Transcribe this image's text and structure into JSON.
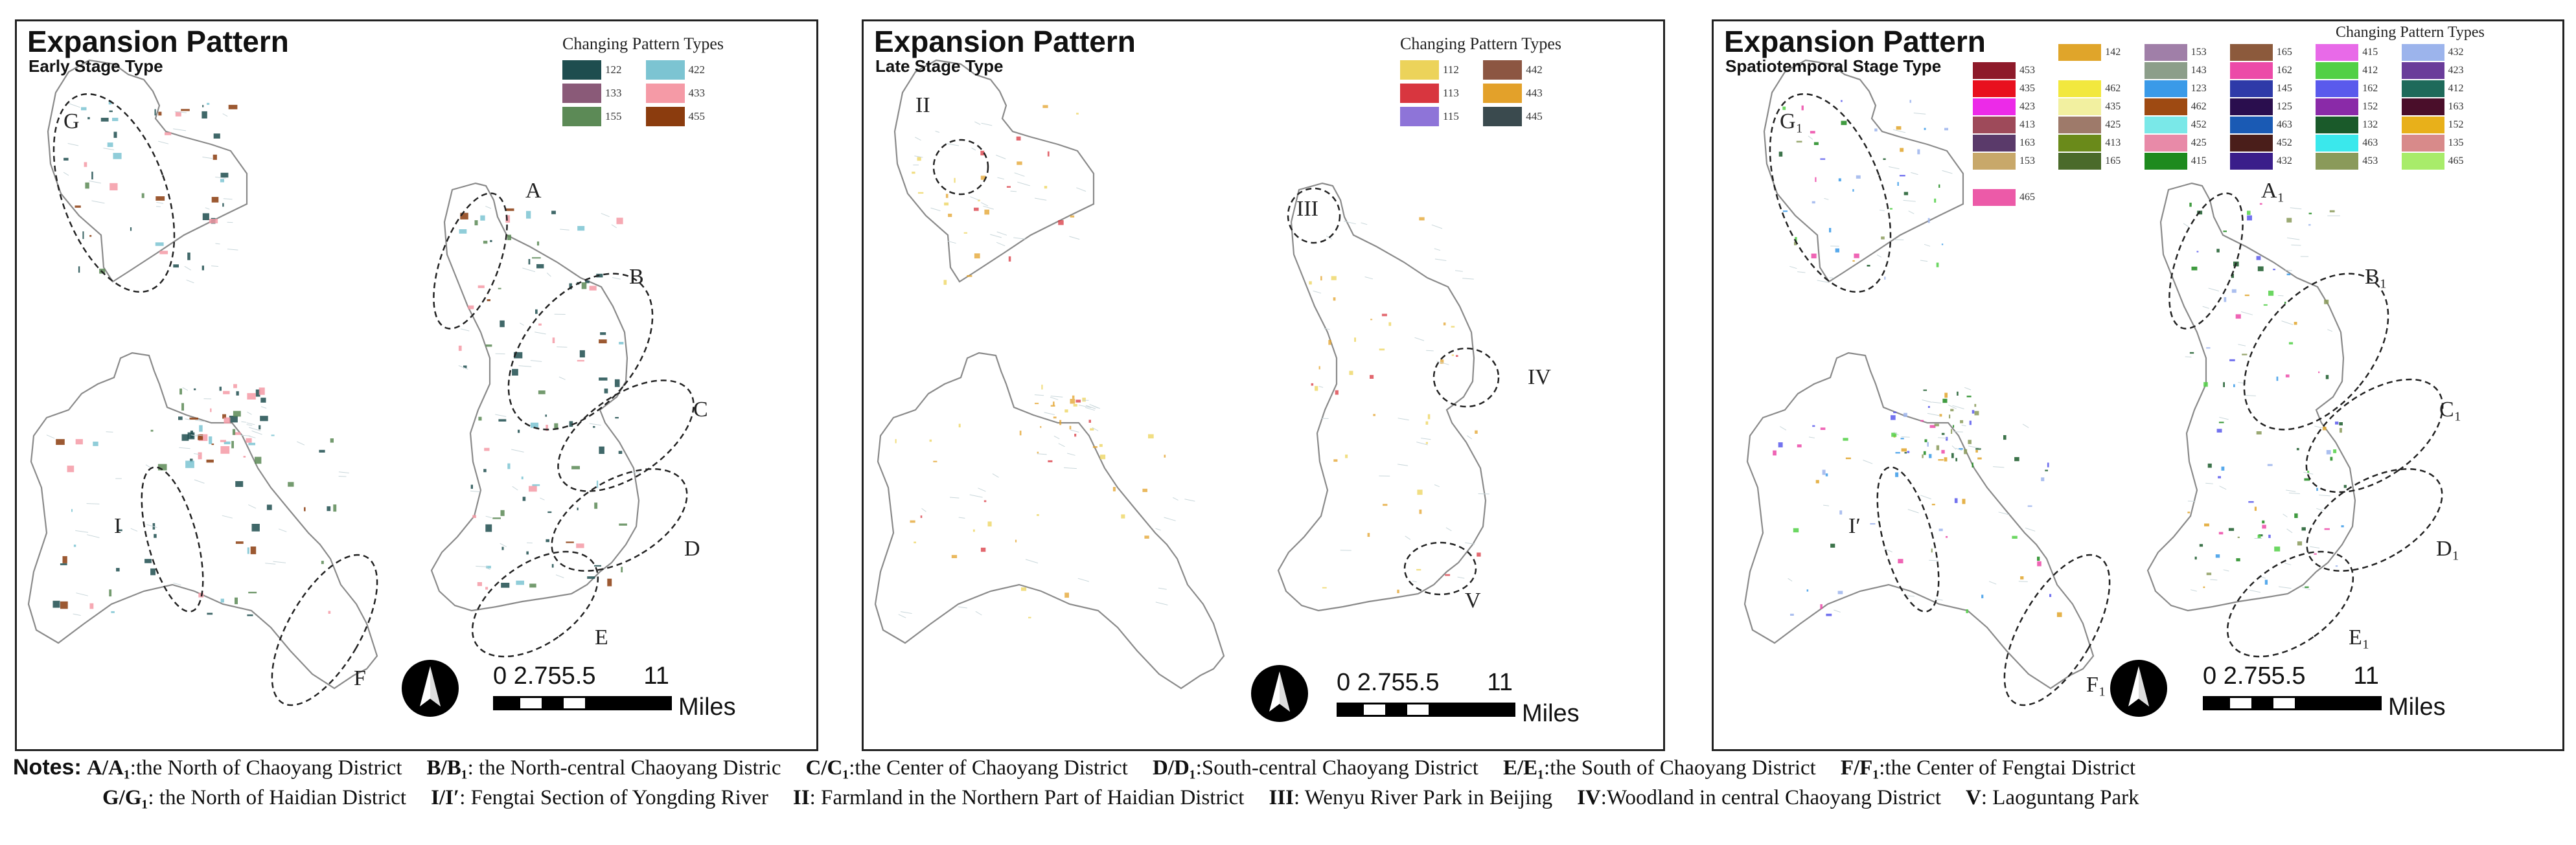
{
  "panels": [
    {
      "title": "Expansion Pattern",
      "subtitle": "Early Stage Type",
      "legend_title": "Changing Pattern Types",
      "legend_columns": 2,
      "legend": [
        {
          "code": "122",
          "color": "#1e4d4f"
        },
        {
          "code": "422",
          "color": "#7cc4d2"
        },
        {
          "code": "133",
          "color": "#8a5a78"
        },
        {
          "code": "433",
          "color": "#f59aa6"
        },
        {
          "code": "155",
          "color": "#5c8a56"
        },
        {
          "code": "455",
          "color": "#8b3c0e"
        }
      ],
      "patch_colors": [
        "#1e4d4f",
        "#1e4d4f",
        "#1e4d4f",
        "#7cc4d2",
        "#5c8a56",
        "#8b3c0e",
        "#f59aa6"
      ],
      "regions": [
        "G",
        "A",
        "B",
        "C",
        "D",
        "E",
        "I",
        "F"
      ],
      "scale": {
        "ticks": "0 2.755.5       11",
        "unit": "Miles"
      }
    },
    {
      "title": "Expansion Pattern",
      "subtitle": "Late Stage Type",
      "legend_title": "Changing Pattern Types",
      "legend_columns": 2,
      "legend": [
        {
          "code": "112",
          "color": "#ecd35a"
        },
        {
          "code": "442",
          "color": "#8c5642"
        },
        {
          "code": "113",
          "color": "#d8363f"
        },
        {
          "code": "443",
          "color": "#e3a12a"
        },
        {
          "code": "115",
          "color": "#8e74d8"
        },
        {
          "code": "445",
          "color": "#3a4a4e"
        }
      ],
      "patch_colors": [
        "#ecd35a",
        "#e3a12a",
        "#d8363f",
        "#e3a12a",
        "#ecd35a"
      ],
      "regions": [
        "II",
        "III",
        "IV",
        "V"
      ],
      "scale": {
        "ticks": "0 2.755.5       11",
        "unit": "Miles"
      }
    },
    {
      "title": "Expansion Pattern",
      "subtitle": "Spatiotemporal Stage Type",
      "legend_title": "Changing Pattern Types",
      "legend_columns": 6,
      "legend": [
        {
          "code": "",
          "color": ""
        },
        {
          "code": "142",
          "color": "#e0a52a"
        },
        {
          "code": "153",
          "color": "#a07fa8"
        },
        {
          "code": "165",
          "color": "#8c5a3c"
        },
        {
          "code": "415",
          "color": "#e86ae8"
        },
        {
          "code": "432",
          "color": "#9cb4ec"
        },
        {
          "code": "453",
          "color": "#8e1a2a"
        },
        {
          "code": "",
          "color": ""
        },
        {
          "code": "143",
          "color": "#8c9e8a"
        },
        {
          "code": "162",
          "color": "#ec4aa8"
        },
        {
          "code": "412",
          "color": "#52d046"
        },
        {
          "code": "423",
          "color": "#6a3c9a"
        },
        {
          "code": "435",
          "color": "#e8101e"
        },
        {
          "code": "462",
          "color": "#f2e83e"
        },
        {
          "code": "123",
          "color": "#3a9ae8"
        },
        {
          "code": "145",
          "color": "#2e3aa8"
        },
        {
          "code": "162",
          "color": "#5a5aec"
        },
        {
          "code": "412",
          "color": "#1e6a5a"
        },
        {
          "code": "423",
          "color": "#ec2ae8"
        },
        {
          "code": "435",
          "color": "#f2f0a0"
        },
        {
          "code": "462",
          "color": "#9e4a12"
        },
        {
          "code": "125",
          "color": "#2a0e4e"
        },
        {
          "code": "152",
          "color": "#8a2aa8"
        },
        {
          "code": "163",
          "color": "#4a0e2a"
        },
        {
          "code": "413",
          "color": "#9e4a5a"
        },
        {
          "code": "425",
          "color": "#9e7a6a"
        },
        {
          "code": "452",
          "color": "#7ae8e8"
        },
        {
          "code": "463",
          "color": "#1a5ab4"
        },
        {
          "code": "132",
          "color": "#1a5a2a"
        },
        {
          "code": "152",
          "color": "#e8b01a"
        },
        {
          "code": "163",
          "color": "#5a3a6a"
        },
        {
          "code": "413",
          "color": "#6a8a1a"
        },
        {
          "code": "425",
          "color": "#e88aa8"
        },
        {
          "code": "452",
          "color": "#4a1e1a"
        },
        {
          "code": "463",
          "color": "#3ae8ec"
        },
        {
          "code": "135",
          "color": "#d88a8a"
        },
        {
          "code": "153",
          "color": "#c8a86a"
        },
        {
          "code": "165",
          "color": "#4a6a2a"
        },
        {
          "code": "415",
          "color": "#1e8a1e"
        },
        {
          "code": "432",
          "color": "#3a1e8a"
        },
        {
          "code": "453",
          "color": "#8a9a5a"
        },
        {
          "code": "465",
          "color": "#a8ec6a"
        },
        {
          "code": "",
          "color": ""
        },
        {
          "code": "",
          "color": ""
        },
        {
          "code": "",
          "color": ""
        },
        {
          "code": "",
          "color": ""
        },
        {
          "code": "",
          "color": ""
        },
        {
          "code": "",
          "color": ""
        },
        {
          "code": "465",
          "color": "#ec5aa8"
        }
      ],
      "patch_colors": [
        "#e0a52a",
        "#3a9ae8",
        "#52d046",
        "#5a5aec",
        "#1e8a1e",
        "#ec4aa8",
        "#8a9a5a",
        "#9cb4ec",
        "#1a5a2a"
      ],
      "regions": [
        "G₁",
        "A₁",
        "B₁",
        "C₁",
        "D₁",
        "E₁",
        "I′",
        "F₁"
      ],
      "scale": {
        "ticks": "0 2.755.5       11",
        "unit": "Miles"
      }
    }
  ],
  "notes": {
    "label": "Notes:",
    "line1": [
      {
        "key": "A/A₁",
        "text": ":the North of Chaoyang District"
      },
      {
        "key": "B/B₁",
        "text": ": the North-central  Chaoyang Distric"
      },
      {
        "key": "C/C₁",
        "text": ":the Center of Chaoyang District"
      },
      {
        "key": "D/D₁",
        "text": ":South-central Chaoyang District"
      },
      {
        "key": "E/E₁",
        "text": ":the South of Chaoyang District"
      },
      {
        "key": "F/F₁",
        "text": ":the Center of Fengtai District"
      }
    ],
    "line2": [
      {
        "key": "G/G₁",
        "text": ": the North of Haidian District"
      },
      {
        "key": "I/I′",
        "text": ": Fengtai Section of Yongding River"
      },
      {
        "key": "II",
        "text": ": Farmland in the Northern Part of Haidian District"
      },
      {
        "key": "III",
        "text": ": Wenyu River Park in Beijing"
      },
      {
        "key": "IV",
        "text": ":Woodland in central Chaoyang District"
      },
      {
        "key": "V",
        "text": ": Laoguntang Park"
      }
    ]
  }
}
